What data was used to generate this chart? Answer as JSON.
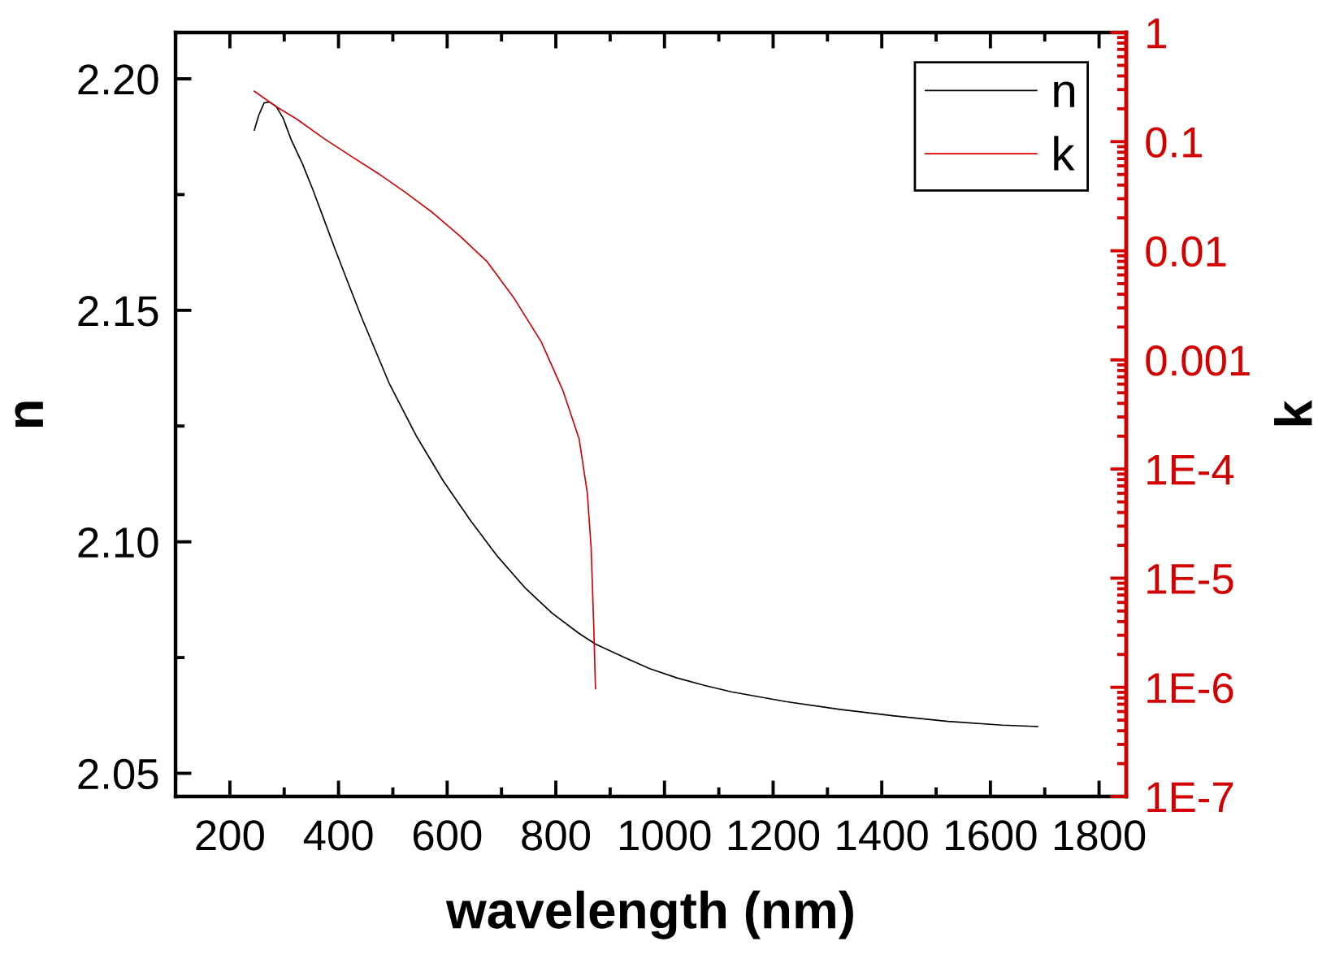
{
  "chart_data": {
    "type": "line",
    "xlabel": "wavelength (nm)",
    "ylabel": "n",
    "y2label": "k",
    "xlim": [
      100,
      1850
    ],
    "xticks": [
      200,
      {
        "value": 300,
        "label": null
      },
      400,
      {
        "value": 500,
        "label": null
      },
      600,
      {
        "value": 700,
        "label": null
      },
      800,
      {
        "value": 900,
        "label": null
      },
      1000,
      {
        "value": 1100,
        "label": null
      },
      1200,
      {
        "value": 1300,
        "label": null
      },
      1400,
      {
        "value": 1500,
        "label": null
      },
      1600,
      {
        "value": 1700,
        "label": null
      },
      1800
    ],
    "ylim": [
      2.045,
      2.21
    ],
    "yticks": [
      2.05,
      {
        "value": 2.075,
        "label": null
      },
      {
        "value": 2.1,
        "label": "2.10"
      },
      {
        "value": 2.125,
        "label": null
      },
      2.15,
      {
        "value": 2.175,
        "label": null
      },
      {
        "value": 2.2,
        "label": "2.20"
      }
    ],
    "y2lim": [
      1e-07,
      1
    ],
    "y2ticks": [
      {
        "value": 1e-07,
        "label": "1E-7"
      },
      {
        "value": 1e-06,
        "label": "1E-6"
      },
      {
        "value": 1e-05,
        "label": "1E-5"
      },
      {
        "value": 0.0001,
        "label": "1E-4"
      },
      0.001,
      0.01,
      0.1,
      1
    ],
    "log": "y2",
    "legend": "top right",
    "series": [
      {
        "name": "n",
        "color": "#000000",
        "x": [
          245,
          253,
          263,
          273,
          285,
          298,
          313,
          333,
          353,
          373,
          393,
          418,
          443,
          493,
          543,
          593,
          643,
          693,
          743,
          793,
          843,
          873,
          923,
          973,
          1023,
          1073,
          1123,
          1223,
          1323,
          1423,
          1522,
          1622,
          1687
        ],
        "values": [
          2.1889,
          2.1921,
          2.1948,
          2.195,
          2.1941,
          2.1915,
          2.1868,
          2.1818,
          2.176,
          2.1697,
          2.1634,
          2.1558,
          2.1483,
          2.1343,
          2.1229,
          2.1131,
          2.1046,
          2.0968,
          2.0901,
          2.0846,
          2.0802,
          2.0779,
          2.0752,
          2.0726,
          2.0706,
          2.069,
          2.0676,
          2.0655,
          2.0638,
          2.0624,
          2.0612,
          2.0604,
          2.0601
        ]
      },
      {
        "name": "k",
        "color": "#d40000",
        "axis": "y2",
        "x": [
          245,
          283,
          323,
          373,
          423,
          473,
          523,
          573,
          623,
          673,
          723,
          773,
          813,
          843,
          858,
          865,
          870,
          873
        ],
        "values": [
          0.29,
          0.213,
          0.161,
          0.107,
          0.0737,
          0.0511,
          0.0343,
          0.0224,
          0.0137,
          0.008,
          0.00368,
          0.00147,
          0.000526,
          0.000188,
          6e-05,
          1.9e-05,
          3.4e-06,
          9.7e-07
        ]
      }
    ]
  }
}
